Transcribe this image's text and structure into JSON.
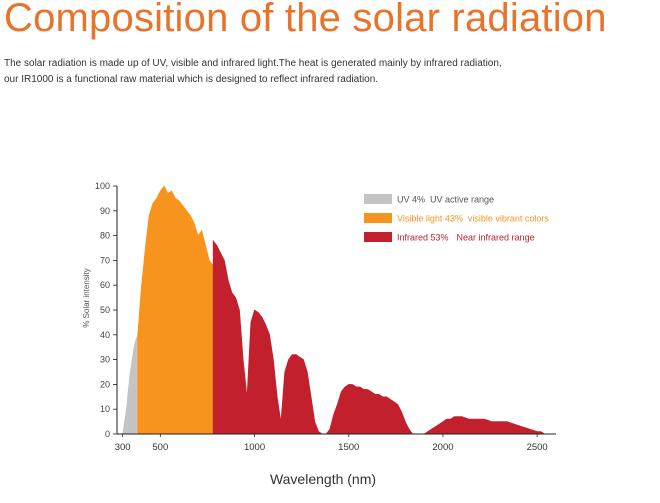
{
  "header": {
    "title": "Composition of the solar radiation",
    "description_line1": "The solar radiation is made up of UV, visible and infrared light.The heat is generated mainly by infrared radiation,",
    "description_line2": "our IR1000 is a functional raw material which is designed to reflect infrared radiation."
  },
  "colors": {
    "title": "#e8732a",
    "uv": "#c4c4c4",
    "visible": "#f7941d",
    "infrared": "#c1202c"
  },
  "chart_data": {
    "type": "area",
    "title": "",
    "xlabel": "Wavelength (nm)",
    "ylabel": "% Solar intensity",
    "xlim": [
      270,
      2600
    ],
    "ylim": [
      0,
      100
    ],
    "xticks": [
      300,
      500,
      1000,
      1500,
      2000,
      2500
    ],
    "yticks": [
      0,
      10,
      20,
      30,
      40,
      50,
      60,
      70,
      80,
      90,
      100
    ],
    "grid": false,
    "legend_position": "top-right",
    "series": [
      {
        "name": "UV 4%",
        "description": "UV active range",
        "color": "#c4c4c4",
        "range": [
          300,
          380
        ],
        "points": [
          [
            300,
            0
          ],
          [
            310,
            5
          ],
          [
            320,
            10
          ],
          [
            330,
            18
          ],
          [
            340,
            25
          ],
          [
            350,
            30
          ],
          [
            360,
            35
          ],
          [
            370,
            38
          ],
          [
            380,
            40
          ]
        ]
      },
      {
        "name": "Visible light 43%",
        "description": "visible vibrant colors",
        "color": "#f7941d",
        "range": [
          380,
          780
        ],
        "points": [
          [
            380,
            40
          ],
          [
            400,
            60
          ],
          [
            420,
            75
          ],
          [
            440,
            88
          ],
          [
            460,
            93
          ],
          [
            480,
            95
          ],
          [
            500,
            98
          ],
          [
            520,
            100
          ],
          [
            540,
            97
          ],
          [
            560,
            98
          ],
          [
            580,
            95
          ],
          [
            600,
            94
          ],
          [
            620,
            92
          ],
          [
            640,
            90
          ],
          [
            660,
            88
          ],
          [
            680,
            85
          ],
          [
            700,
            80
          ],
          [
            720,
            82
          ],
          [
            740,
            76
          ],
          [
            760,
            70
          ],
          [
            780,
            68
          ]
        ]
      },
      {
        "name": "Infrared 53%",
        "description": "Near infrared range",
        "color": "#c1202c",
        "range": [
          780,
          2550
        ],
        "points": [
          [
            780,
            78
          ],
          [
            800,
            76
          ],
          [
            820,
            73
          ],
          [
            840,
            70
          ],
          [
            860,
            62
          ],
          [
            880,
            57
          ],
          [
            900,
            55
          ],
          [
            920,
            50
          ],
          [
            940,
            30
          ],
          [
            960,
            15
          ],
          [
            980,
            45
          ],
          [
            1000,
            50
          ],
          [
            1020,
            49
          ],
          [
            1040,
            47
          ],
          [
            1060,
            44
          ],
          [
            1080,
            40
          ],
          [
            1100,
            30
          ],
          [
            1120,
            15
          ],
          [
            1140,
            5
          ],
          [
            1160,
            25
          ],
          [
            1180,
            30
          ],
          [
            1200,
            32
          ],
          [
            1220,
            32
          ],
          [
            1240,
            31
          ],
          [
            1260,
            30
          ],
          [
            1280,
            25
          ],
          [
            1300,
            15
          ],
          [
            1320,
            5
          ],
          [
            1340,
            1
          ],
          [
            1360,
            0
          ],
          [
            1380,
            0
          ],
          [
            1400,
            2
          ],
          [
            1420,
            8
          ],
          [
            1440,
            12
          ],
          [
            1460,
            17
          ],
          [
            1480,
            19
          ],
          [
            1500,
            20
          ],
          [
            1520,
            20
          ],
          [
            1540,
            19
          ],
          [
            1560,
            19
          ],
          [
            1580,
            18
          ],
          [
            1600,
            18
          ],
          [
            1620,
            17
          ],
          [
            1640,
            16
          ],
          [
            1660,
            16
          ],
          [
            1680,
            15
          ],
          [
            1700,
            15
          ],
          [
            1720,
            14
          ],
          [
            1740,
            13
          ],
          [
            1760,
            12
          ],
          [
            1780,
            9
          ],
          [
            1800,
            5
          ],
          [
            1820,
            2
          ],
          [
            1840,
            0
          ],
          [
            1880,
            0
          ],
          [
            1900,
            0
          ],
          [
            1920,
            1
          ],
          [
            1940,
            2
          ],
          [
            1960,
            3
          ],
          [
            1980,
            4
          ],
          [
            2000,
            5
          ],
          [
            2020,
            6
          ],
          [
            2040,
            6
          ],
          [
            2060,
            7
          ],
          [
            2080,
            7
          ],
          [
            2100,
            7
          ],
          [
            2140,
            6
          ],
          [
            2180,
            6
          ],
          [
            2220,
            6
          ],
          [
            2260,
            5
          ],
          [
            2300,
            5
          ],
          [
            2340,
            5
          ],
          [
            2380,
            4
          ],
          [
            2420,
            3
          ],
          [
            2460,
            2
          ],
          [
            2500,
            1
          ],
          [
            2520,
            1
          ],
          [
            2540,
            0
          ]
        ]
      }
    ]
  }
}
